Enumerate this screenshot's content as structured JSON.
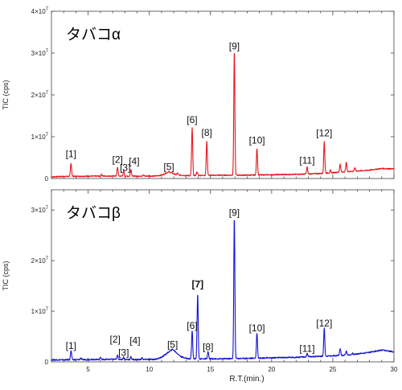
{
  "chart_data": [
    {
      "type": "line",
      "title": "タバコα",
      "ylabel": "TIC (cps)",
      "xlim": [
        2,
        30
      ],
      "ylim": [
        0,
        40000000
      ],
      "yticks": [
        {
          "value": 0,
          "label": "0"
        },
        {
          "value": 10000000,
          "label": "1×10",
          "exp": "7"
        },
        {
          "value": 20000000,
          "label": "2×10",
          "exp": "7"
        },
        {
          "value": 30000000,
          "label": "3×10",
          "exp": "7"
        },
        {
          "value": 40000000,
          "label": "4×10",
          "exp": "7"
        }
      ],
      "color": "#e8151b",
      "baseline": [
        [
          2.0,
          0.4
        ],
        [
          3.0,
          0.5
        ],
        [
          5.0,
          0.55
        ],
        [
          7.0,
          0.6
        ],
        [
          8.5,
          0.55
        ],
        [
          10.5,
          0.6
        ],
        [
          11.0,
          0.8
        ],
        [
          11.6,
          1.6
        ],
        [
          12.2,
          0.9
        ],
        [
          13.0,
          0.7
        ],
        [
          16.0,
          0.8
        ],
        [
          18.0,
          0.8
        ],
        [
          20.0,
          0.9
        ],
        [
          22.0,
          1.0
        ],
        [
          24.0,
          1.2
        ],
        [
          25.0,
          1.4
        ],
        [
          26.5,
          1.7
        ],
        [
          28.0,
          2.0
        ],
        [
          29.0,
          2.4
        ],
        [
          30.0,
          2.3
        ]
      ],
      "peaks": [
        {
          "x": 3.6,
          "y": 3.6,
          "label": "[1]"
        },
        {
          "x": 7.4,
          "y": 2.6,
          "label": "[2]"
        },
        {
          "x": 7.9,
          "y": 1.8,
          "label": "[3]"
        },
        {
          "x": 8.5,
          "y": 2.2,
          "label": "[4]"
        },
        {
          "x": 11.6,
          "y": 1.6,
          "label": "[5]"
        },
        {
          "x": 13.5,
          "y": 12.1,
          "label": "[6]"
        },
        {
          "x": 14.7,
          "y": 9.0,
          "label": "[8]"
        },
        {
          "x": 16.95,
          "y": 30.5,
          "label": "[9]"
        },
        {
          "x": 18.8,
          "y": 7.2,
          "label": "[10]"
        },
        {
          "x": 22.9,
          "y": 2.8,
          "label": "[11]"
        },
        {
          "x": 24.3,
          "y": 8.9,
          "label": "[12]"
        }
      ],
      "extra_peaks": [
        {
          "x": 6.1,
          "y": 1.0
        },
        {
          "x": 9.5,
          "y": 0.9
        },
        {
          "x": 12.3,
          "y": 1.3
        },
        {
          "x": 13.9,
          "y": 1.6
        },
        {
          "x": 24.8,
          "y": 2.0
        },
        {
          "x": 25.6,
          "y": 3.4
        },
        {
          "x": 26.1,
          "y": 3.9
        },
        {
          "x": 26.8,
          "y": 2.6
        }
      ]
    },
    {
      "type": "line",
      "title": "タバコβ",
      "ylabel": "TIC (cps)",
      "xlabel": "R.T.(min.)",
      "xlim": [
        2,
        30
      ],
      "xticks": [
        5,
        10,
        15,
        20,
        25,
        30
      ],
      "ylim": [
        0,
        34000000
      ],
      "yticks": [
        {
          "value": 0,
          "label": "0"
        },
        {
          "value": 10000000,
          "label": "1×10",
          "exp": "7"
        },
        {
          "value": 20000000,
          "label": "2×10",
          "exp": "7"
        },
        {
          "value": 30000000,
          "label": "3×10",
          "exp": "7"
        }
      ],
      "color": "#1212d8",
      "baseline": [
        [
          2.0,
          0.4
        ],
        [
          3.0,
          0.4
        ],
        [
          5.0,
          0.45
        ],
        [
          7.0,
          0.5
        ],
        [
          9.0,
          0.45
        ],
        [
          10.5,
          0.5
        ],
        [
          11.0,
          0.9
        ],
        [
          11.9,
          2.5
        ],
        [
          12.6,
          1.0
        ],
        [
          13.2,
          0.6
        ],
        [
          16.0,
          0.6
        ],
        [
          18.0,
          0.7
        ],
        [
          20.0,
          0.8
        ],
        [
          22.0,
          0.9
        ],
        [
          24.0,
          1.1
        ],
        [
          25.0,
          1.2
        ],
        [
          26.5,
          1.4
        ],
        [
          28.0,
          1.9
        ],
        [
          29.0,
          2.3
        ],
        [
          30.0,
          2.0
        ]
      ],
      "peaks": [
        {
          "x": 3.6,
          "y": 2.2,
          "label": "[1]"
        },
        {
          "x": 7.4,
          "y": 1.3,
          "label": "[2]"
        },
        {
          "x": 7.9,
          "y": 0.9,
          "label": "[3]"
        },
        {
          "x": 8.5,
          "y": 1.0,
          "label": "[4]"
        },
        {
          "x": 11.9,
          "y": 2.5,
          "label": "[5]"
        },
        {
          "x": 13.5,
          "y": 6.2,
          "label": "[6]"
        },
        {
          "x": 13.95,
          "y": 13.4,
          "label": "[7]",
          "highlight": "#e8151b"
        },
        {
          "x": 14.8,
          "y": 2.0,
          "label": "[8]"
        },
        {
          "x": 16.95,
          "y": 28.5,
          "label": "[9]"
        },
        {
          "x": 18.8,
          "y": 5.7,
          "label": "[10]"
        },
        {
          "x": 22.9,
          "y": 1.7,
          "label": "[11]"
        },
        {
          "x": 24.3,
          "y": 6.7,
          "label": "[12]"
        }
      ],
      "extra_peaks": [
        {
          "x": 4.4,
          "y": 0.8
        },
        {
          "x": 6.0,
          "y": 0.9
        },
        {
          "x": 9.4,
          "y": 0.8
        },
        {
          "x": 25.6,
          "y": 2.6
        },
        {
          "x": 26.1,
          "y": 2.2
        },
        {
          "x": 26.6,
          "y": 1.7
        }
      ],
      "value_unit": "×10^6 cps"
    }
  ]
}
